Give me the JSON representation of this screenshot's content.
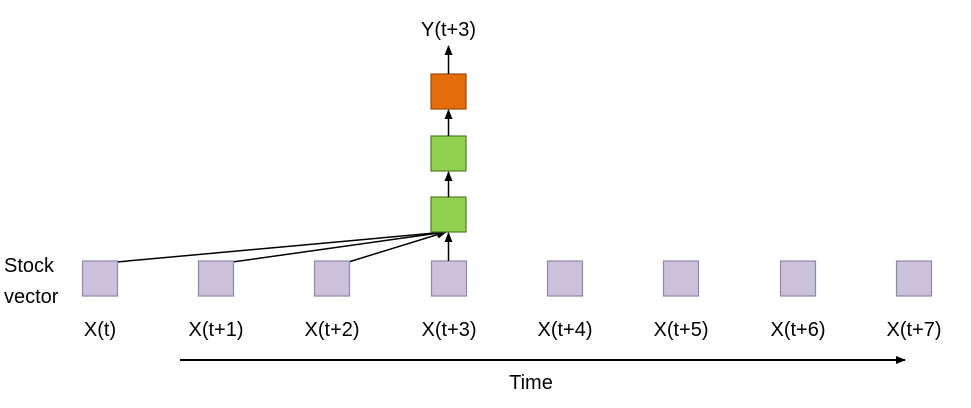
{
  "colors": {
    "input_fill": "#ccc1da",
    "input_stroke": "#8e88a6",
    "hidden_fill": "#92d050",
    "hidden_stroke": "#4f7a28",
    "output_fill": "#e46c0a",
    "output_stroke": "#9c4a07",
    "line": "#000000"
  },
  "side_label": {
    "line1": "Stock",
    "line2": "vector"
  },
  "inputs": [
    {
      "label": "X(t)"
    },
    {
      "label": "X(t+1)"
    },
    {
      "label": "X(t+2)"
    },
    {
      "label": "X(t+3)"
    },
    {
      "label": "X(t+4)"
    },
    {
      "label": "X(t+5)"
    },
    {
      "label": "X(t+6)"
    },
    {
      "label": "X(t+7)"
    }
  ],
  "output_label": "Y(t+3)",
  "time_label": "Time"
}
